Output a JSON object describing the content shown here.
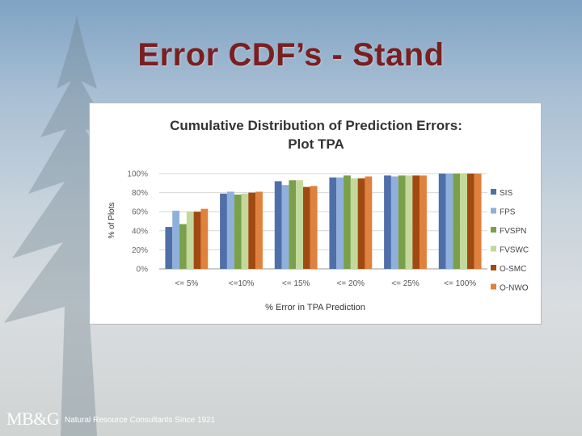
{
  "slide": {
    "title": "Error CDF’s - Stand",
    "footer_logo": "MB&G",
    "footer_text": "Natural Resource Consultants Since 1921"
  },
  "chart_data": {
    "type": "bar",
    "title_line1": "Cumulative Distribution of Prediction Errors:",
    "title_line2": "Plot TPA",
    "xlabel": "% Error in TPA Prediction",
    "ylabel": "% of Plots",
    "ylim": [
      0,
      100
    ],
    "yticks": [
      "0%",
      "20%",
      "40%",
      "60%",
      "80%",
      "100%"
    ],
    "grid": true,
    "legend_position": "right",
    "categories": [
      "<= 5%",
      "<=10%",
      "<= 15%",
      "<= 20%",
      "<= 25%",
      "<= 100%"
    ],
    "series": [
      {
        "name": "SIS",
        "color": "#4f6fa8",
        "values": [
          44,
          79,
          92,
          96,
          98,
          100
        ]
      },
      {
        "name": "FPS",
        "color": "#8fb0dc",
        "values": [
          61,
          81,
          88,
          96,
          97,
          100
        ]
      },
      {
        "name": "FVSPN",
        "color": "#7ba04a",
        "values": [
          47,
          78,
          93,
          98,
          98,
          100
        ]
      },
      {
        "name": "FVSWC",
        "color": "#c3d89b",
        "values": [
          60,
          79,
          93,
          95,
          98,
          100
        ]
      },
      {
        "name": "O-SMC",
        "color": "#a04a12",
        "values": [
          60,
          80,
          86,
          95,
          98,
          100
        ]
      },
      {
        "name": "O-NWO",
        "color": "#e0813d",
        "values": [
          63,
          81,
          87,
          97,
          98,
          100
        ]
      }
    ]
  }
}
